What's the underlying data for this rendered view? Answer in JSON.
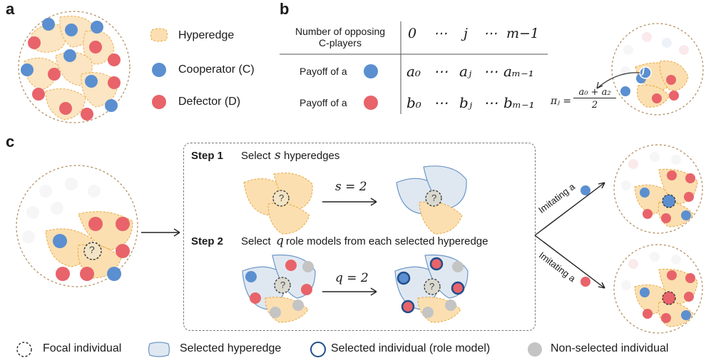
{
  "panels": {
    "a": "a",
    "b": "b",
    "c": "c"
  },
  "legend_a": {
    "hyperedge": "Hyperedge",
    "cooperator": "Cooperator (C)",
    "defector": "Defector (D)"
  },
  "table": {
    "header_label_line1": "Number of opposing",
    "header_label_line2": "C-players",
    "header_values": [
      "0",
      "⋯",
      "j",
      "⋯",
      "m−1"
    ],
    "row1_label": "Payoff of a",
    "row1_values": [
      "a₀",
      "⋯",
      "aⱼ",
      "⋯",
      "aₘ₋₁"
    ],
    "row2_label": "Payoff of a",
    "row2_values": [
      "b₀",
      "⋯",
      "bⱼ",
      "⋯",
      "bₘ₋₁"
    ]
  },
  "pi_formula": {
    "lhs": "πⱼ =",
    "numerator": "a₀ + a₂",
    "denominator": "2",
    "node_label": "j"
  },
  "steps": {
    "step1_title": "Step 1",
    "step1_text_a": "Select",
    "step1_var": "s",
    "step1_text_b": "hyperedges",
    "step1_eq": "s = 2",
    "step2_title": "Step 2",
    "step2_text_a": "Select",
    "step2_var": "q",
    "step2_text_b": "role models from each selected hyperedge",
    "step2_eq": "q = 2"
  },
  "imitate": {
    "upper": "Imitating a",
    "lower": "Imitating a"
  },
  "focal_mark": "?",
  "bottom_legend": {
    "focal": "Focal individual",
    "selected_hyperedge": "Selected hyperedge",
    "selected_individual": "Selected individual (role model)",
    "non_selected": "Non-selected individual"
  },
  "colors": {
    "cooperator": "#5b8fd0",
    "defector": "#e8636a",
    "hyperedge_fill": "#fbdfb0",
    "hyperedge_stroke": "#e8a740",
    "selected_fill": "#dfe8f1",
    "selected_stroke": "#6e97c7",
    "role_stroke": "#1f4e8c",
    "grey": "#c4c4c4",
    "faded": "#e6e6e6"
  }
}
